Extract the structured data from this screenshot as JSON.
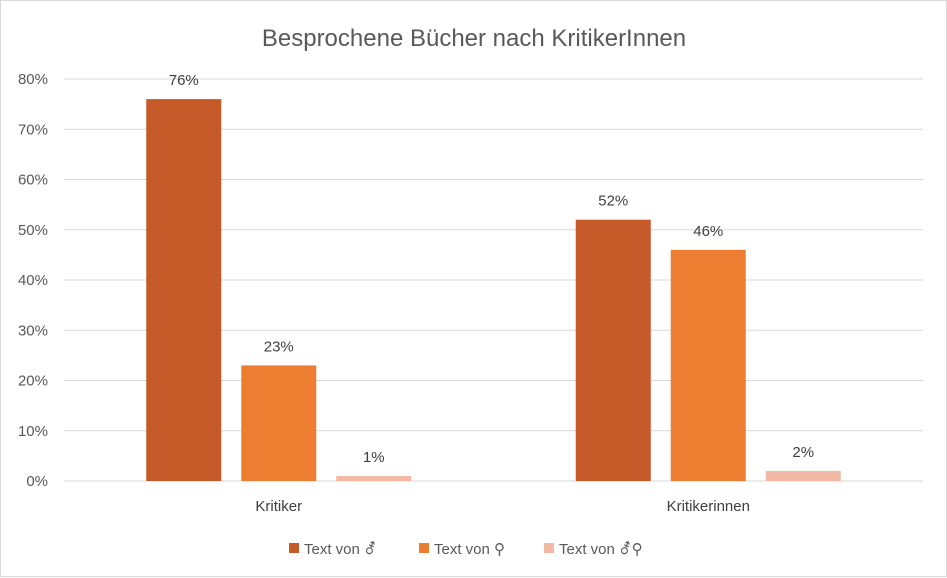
{
  "chart_data": {
    "type": "bar",
    "title": "Besprochene Bücher nach KritikerInnen",
    "categories": [
      "Kritiker",
      "Kritikerinnen"
    ],
    "series": [
      {
        "name": "Text von ⚦",
        "values": [
          76,
          52
        ],
        "labels": [
          "76%",
          "52%"
        ],
        "color": "#c55a28"
      },
      {
        "name": "Text von ⚲",
        "values": [
          23,
          46
        ],
        "labels": [
          "23%",
          "46%"
        ],
        "color": "#ed7d31"
      },
      {
        "name": "Text von ⚦⚲",
        "values": [
          1,
          2
        ],
        "labels": [
          "1%",
          "2%"
        ],
        "color": "#f4b9a4"
      }
    ],
    "ylim": [
      0,
      80
    ],
    "yticks": [
      0,
      10,
      20,
      30,
      40,
      50,
      60,
      70,
      80
    ],
    "ytick_labels": [
      "0%",
      "10%",
      "20%",
      "30%",
      "40%",
      "50%",
      "60%",
      "70%",
      "80%"
    ],
    "grid": true,
    "legend_position": "bottom",
    "legend": {
      "prefix": "Text von",
      "symbols": [
        "⚦",
        "⚲",
        "⚦⚲"
      ]
    }
  }
}
